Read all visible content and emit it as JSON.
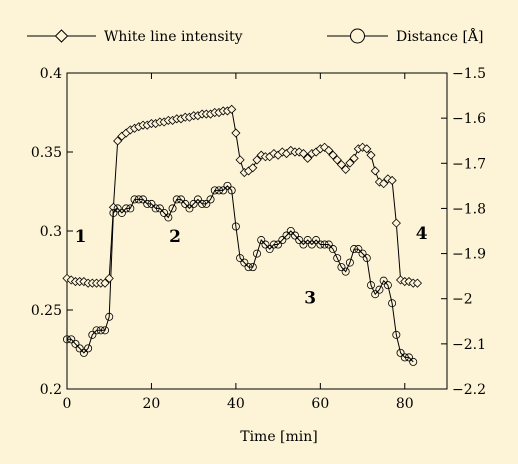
{
  "chart_data": {
    "type": "line",
    "title": "",
    "xlabel": "Time [min]",
    "ylabel_left": "",
    "ylabel_right": "",
    "xlim": [
      0,
      90
    ],
    "ylim_left": [
      0.2,
      0.4
    ],
    "ylim_right": [
      -2.2,
      -1.5
    ],
    "x_ticks": [
      "0",
      "20",
      "40",
      "60",
      "80"
    ],
    "y_left_ticks": [
      "0.2",
      "0.25",
      "0.3",
      "0.35",
      "0.4"
    ],
    "y_right_ticks": [
      "-2.2",
      "-2.1",
      "-2",
      "-1.9",
      "-1.8",
      "-1.7",
      "-1.6",
      "-1.5"
    ],
    "grid": false,
    "legend_position": "top",
    "background": "#fdf3d6",
    "series": [
      {
        "name": "White line intensity",
        "axis": "left",
        "marker": "diamond",
        "x": [
          0,
          1,
          2,
          3,
          4,
          5,
          6,
          7,
          8,
          9,
          10,
          11,
          12,
          13,
          14,
          15,
          16,
          17,
          18,
          19,
          20,
          21,
          22,
          23,
          24,
          25,
          26,
          27,
          28,
          29,
          30,
          31,
          32,
          33,
          34,
          35,
          36,
          37,
          38,
          39,
          40,
          41,
          42,
          43,
          44,
          45,
          46,
          47,
          48,
          49,
          50,
          51,
          52,
          53,
          54,
          55,
          56,
          57,
          58,
          59,
          60,
          61,
          62,
          63,
          64,
          65,
          66,
          67,
          68,
          69,
          70,
          71,
          72,
          73,
          74,
          75,
          76,
          77,
          78,
          79,
          80,
          81,
          82,
          83
        ],
        "y": [
          0.27,
          0.269,
          0.268,
          0.268,
          0.268,
          0.267,
          0.267,
          0.267,
          0.267,
          0.267,
          0.27,
          0.315,
          0.357,
          0.36,
          0.362,
          0.364,
          0.365,
          0.366,
          0.367,
          0.367,
          0.368,
          0.368,
          0.369,
          0.369,
          0.37,
          0.37,
          0.371,
          0.371,
          0.372,
          0.372,
          0.373,
          0.373,
          0.374,
          0.374,
          0.374,
          0.375,
          0.375,
          0.376,
          0.376,
          0.377,
          0.362,
          0.345,
          0.337,
          0.338,
          0.34,
          0.345,
          0.348,
          0.347,
          0.347,
          0.349,
          0.348,
          0.35,
          0.349,
          0.351,
          0.35,
          0.35,
          0.349,
          0.346,
          0.349,
          0.35,
          0.352,
          0.353,
          0.351,
          0.348,
          0.345,
          0.342,
          0.339,
          0.343,
          0.346,
          0.352,
          0.353,
          0.352,
          0.348,
          0.338,
          0.331,
          0.33,
          0.333,
          0.332,
          0.305,
          0.269,
          0.268,
          0.268,
          0.267,
          0.267
        ]
      },
      {
        "name": "Distance [Å]",
        "axis": "right",
        "marker": "circle",
        "x": [
          0,
          1,
          2,
          3,
          4,
          5,
          6,
          7,
          8,
          9,
          10,
          11,
          12,
          13,
          14,
          15,
          16,
          17,
          18,
          19,
          20,
          21,
          22,
          23,
          24,
          25,
          26,
          27,
          28,
          29,
          30,
          31,
          32,
          33,
          34,
          35,
          36,
          37,
          38,
          39,
          40,
          41,
          42,
          43,
          44,
          45,
          46,
          47,
          48,
          49,
          50,
          51,
          52,
          53,
          54,
          55,
          56,
          57,
          58,
          59,
          60,
          61,
          62,
          63,
          64,
          65,
          66,
          67,
          68,
          69,
          70,
          71,
          72,
          73,
          74,
          75,
          76,
          77,
          78,
          79,
          80,
          81,
          82
        ],
        "y": [
          -2.09,
          -2.09,
          -2.1,
          -2.11,
          -2.12,
          -2.11,
          -2.08,
          -2.07,
          -2.07,
          -2.07,
          -2.04,
          -1.81,
          -1.8,
          -1.81,
          -1.8,
          -1.8,
          -1.78,
          -1.78,
          -1.78,
          -1.79,
          -1.79,
          -1.8,
          -1.8,
          -1.81,
          -1.82,
          -1.8,
          -1.78,
          -1.78,
          -1.79,
          -1.8,
          -1.79,
          -1.78,
          -1.79,
          -1.79,
          -1.78,
          -1.76,
          -1.76,
          -1.76,
          -1.75,
          -1.76,
          -1.84,
          -1.91,
          -1.92,
          -1.93,
          -1.93,
          -1.9,
          -1.87,
          -1.88,
          -1.89,
          -1.88,
          -1.88,
          -1.87,
          -1.86,
          -1.85,
          -1.86,
          -1.87,
          -1.88,
          -1.87,
          -1.88,
          -1.87,
          -1.88,
          -1.88,
          -1.88,
          -1.89,
          -1.91,
          -1.93,
          -1.94,
          -1.92,
          -1.89,
          -1.89,
          -1.9,
          -1.91,
          -1.97,
          -1.99,
          -1.98,
          -1.96,
          -1.97,
          -2.01,
          -2.08,
          -2.12,
          -2.13,
          -2.13,
          -2.14
        ]
      }
    ],
    "annotations": [
      {
        "text": "1",
        "x": 3.2,
        "y_left": 0.293
      },
      {
        "text": "2",
        "x": 25.6,
        "y_left": 0.293
      },
      {
        "text": "3",
        "x": 57.6,
        "y_left": 0.254
      },
      {
        "text": "4",
        "x": 84.0,
        "y_left": 0.295
      }
    ]
  }
}
